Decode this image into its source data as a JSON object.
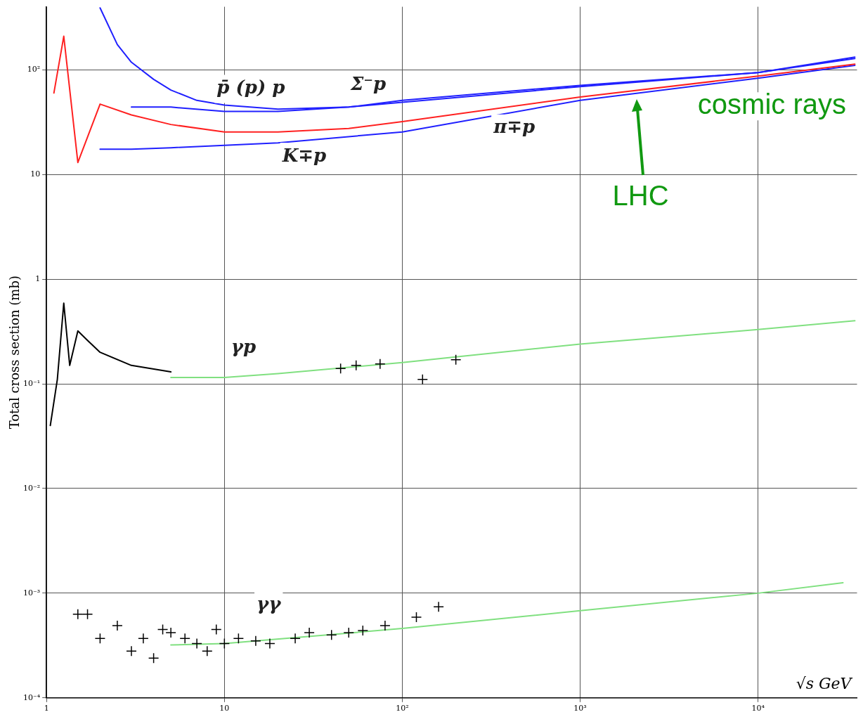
{
  "chart_data": {
    "type": "line",
    "xlabel": "√s GeV",
    "ylabel": "Total cross section (mb)",
    "xlim": [
      1,
      36000
    ],
    "ylim": [
      0.0001,
      400
    ],
    "xticks": [
      1,
      10,
      {
        "value": 100,
        "label": "10²"
      },
      {
        "value": 1000,
        "label": "10³"
      },
      {
        "value": 10000,
        "label": "10⁴"
      }
    ],
    "yticks": [
      {
        "value": 0.0001,
        "label": "10⁻⁴"
      },
      {
        "value": 0.001,
        "label": "10⁻³"
      },
      {
        "value": 0.01,
        "label": "10⁻²"
      },
      {
        "value": 0.1,
        "label": "10⁻¹"
      },
      1,
      10,
      {
        "value": 100,
        "label": "10²"
      }
    ],
    "log": "xy",
    "grid": true,
    "series": [
      {
        "marker": "none",
        "color": "#2020ff",
        "x": [
          2,
          2.5,
          3,
          4,
          5,
          7,
          10,
          20,
          50,
          100,
          1000,
          10000,
          35000
        ],
        "values": [
          390,
          174,
          118,
          81,
          64,
          51,
          46,
          42,
          44,
          51,
          71,
          94,
          132
        ]
      },
      {
        "marker": "none",
        "color": "#2020ff",
        "x": [
          3,
          5,
          10,
          20,
          50,
          100,
          1000,
          10000,
          35000
        ],
        "values": [
          44,
          44,
          40,
          40,
          44,
          49,
          69,
          94,
          128
        ]
      },
      {
        "marker": "none",
        "color": "#ff2020",
        "x": [
          1.1,
          1.25,
          1.5,
          2,
          3,
          5,
          10,
          20,
          50,
          100,
          1000,
          10000,
          35000
        ],
        "values": [
          60,
          209,
          13,
          47,
          37,
          30,
          25.5,
          25.5,
          27.5,
          32,
          55,
          87,
          113
        ]
      },
      {
        "marker": "none",
        "color": "#2020ff",
        "x": [
          2,
          3,
          5,
          10,
          20,
          100,
          1000,
          10000,
          35000
        ],
        "values": [
          17.4,
          17.4,
          18,
          19,
          20,
          25.5,
          51,
          83,
          110
        ]
      },
      {
        "marker": "none",
        "color": "#000000",
        "x": [
          1.05,
          1.15,
          1.25,
          1.35,
          1.5,
          1.7,
          2,
          3,
          5
        ],
        "values": [
          0.04,
          0.11,
          0.59,
          0.15,
          0.32,
          0.26,
          0.2,
          0.15,
          0.13
        ]
      },
      {
        "marker": "none",
        "color": "#80e080",
        "x": [
          5,
          10,
          20,
          100,
          1000,
          10000,
          35000
        ],
        "values": [
          0.115,
          0.115,
          0.125,
          0.16,
          0.24,
          0.33,
          0.4
        ]
      },
      {
        "type": "scatter",
        "marker": "cross",
        "color": "#000000",
        "x": [
          45,
          55,
          75,
          130,
          200
        ],
        "values": [
          0.14,
          0.15,
          0.155,
          0.11,
          0.17
        ]
      },
      {
        "marker": "none",
        "color": "#80e080",
        "x": [
          5,
          10,
          100,
          1000,
          10000,
          30000
        ],
        "values": [
          0.00032,
          0.00033,
          0.00046,
          0.00068,
          0.001,
          0.00126
        ]
      },
      {
        "type": "scatter",
        "marker": "cross",
        "color": "#000000",
        "x": [
          1.5,
          1.7,
          2,
          2.5,
          3,
          3.5,
          4,
          4.5,
          5,
          6,
          7,
          8,
          9,
          10,
          12,
          15,
          18,
          25,
          30,
          40,
          50,
          60,
          80,
          120,
          160
        ],
        "values": [
          0.00063,
          0.00063,
          0.00037,
          0.00049,
          0.00028,
          0.00037,
          0.00024,
          0.00045,
          0.00042,
          0.00037,
          0.00033,
          0.00028,
          0.00045,
          0.00033,
          0.00037,
          0.00035,
          0.00033,
          0.00037,
          0.00042,
          0.0004,
          0.00042,
          0.00044,
          0.00049,
          0.00059,
          0.00074
        ]
      }
    ],
    "annotations": [
      "p̄ (p) p",
      "Σ⁻p",
      "π∓p",
      "K∓p",
      "γp",
      "γγ",
      "cosmic rays",
      "LHC"
    ]
  }
}
